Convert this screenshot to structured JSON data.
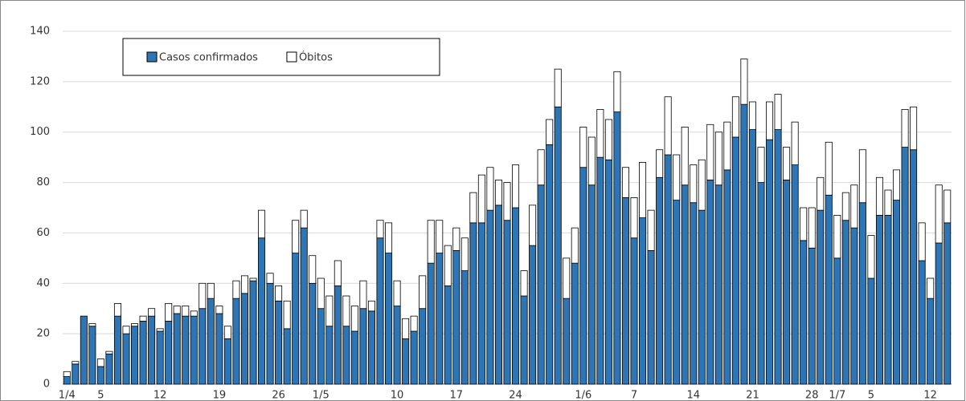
{
  "chart_data": {
    "type": "stacked-bar",
    "categories": [
      "1/4",
      null,
      null,
      null,
      "5",
      null,
      null,
      null,
      null,
      null,
      null,
      "12",
      null,
      null,
      null,
      null,
      null,
      null,
      "19",
      null,
      null,
      null,
      null,
      null,
      null,
      "26",
      null,
      null,
      null,
      null,
      "1/5",
      null,
      null,
      null,
      null,
      null,
      null,
      null,
      null,
      "10",
      null,
      null,
      null,
      null,
      null,
      null,
      "17",
      null,
      null,
      null,
      null,
      null,
      null,
      "24",
      null,
      null,
      null,
      null,
      null,
      null,
      null,
      "1/6",
      null,
      null,
      null,
      null,
      null,
      "7",
      null,
      null,
      null,
      null,
      null,
      null,
      "14",
      null,
      null,
      null,
      null,
      null,
      null,
      "21",
      null,
      null,
      null,
      null,
      null,
      null,
      "28",
      null,
      null,
      "1/7",
      null,
      null,
      null,
      "5",
      null,
      null,
      null,
      null,
      null,
      null,
      "12",
      null,
      null
    ],
    "series": [
      {
        "name": "Casos confirmados",
        "color": "#2e75b6",
        "values": [
          3,
          8,
          27,
          23,
          7,
          12,
          27,
          20,
          23,
          25,
          27,
          21,
          25,
          28,
          27,
          27,
          30,
          34,
          28,
          18,
          34,
          36,
          41,
          58,
          40,
          33,
          22,
          52,
          62,
          40,
          30,
          23,
          39,
          23,
          21,
          30,
          29,
          58,
          52,
          31,
          18,
          21,
          30,
          48,
          52,
          39,
          53,
          45,
          64,
          64,
          69,
          71,
          65,
          70,
          35,
          55,
          79,
          95,
          110,
          34,
          48,
          86,
          79,
          90,
          89,
          108,
          74,
          58,
          66,
          53,
          82,
          91,
          73,
          79,
          72,
          69,
          81,
          79,
          85,
          98,
          111,
          101,
          80,
          97,
          101,
          81,
          87,
          57,
          54,
          69,
          75,
          50,
          65,
          62,
          72,
          42,
          67,
          67,
          73,
          94,
          93,
          49,
          34,
          56,
          64
        ]
      },
      {
        "name": "Óbitos",
        "color": "#ffffff",
        "values": [
          2,
          1,
          0,
          1,
          3,
          1,
          5,
          3,
          1,
          2,
          3,
          1,
          7,
          3,
          4,
          2,
          10,
          6,
          3,
          5,
          7,
          7,
          1,
          11,
          4,
          6,
          11,
          13,
          7,
          11,
          12,
          12,
          10,
          12,
          10,
          11,
          4,
          7,
          12,
          10,
          8,
          6,
          13,
          17,
          13,
          16,
          9,
          13,
          12,
          19,
          17,
          10,
          15,
          17,
          10,
          16,
          14,
          10,
          15,
          16,
          14,
          16,
          19,
          19,
          16,
          16,
          12,
          16,
          22,
          16,
          11,
          23,
          18,
          23,
          15,
          20,
          22,
          21,
          19,
          16,
          18,
          11,
          14,
          15,
          14,
          13,
          17,
          13,
          16,
          13,
          21,
          17,
          11,
          17,
          21,
          17,
          15,
          10,
          12,
          15,
          17,
          15,
          8,
          23,
          13
        ]
      }
    ],
    "ylim": [
      0,
      140
    ],
    "yticks": [
      0,
      20,
      40,
      60,
      80,
      100,
      120,
      140
    ],
    "grid": true,
    "legend": "upper left"
  }
}
